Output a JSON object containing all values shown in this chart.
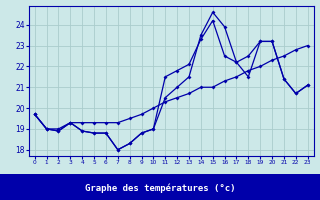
{
  "hours": [
    0,
    1,
    2,
    3,
    4,
    5,
    6,
    7,
    8,
    9,
    10,
    11,
    12,
    13,
    14,
    15,
    16,
    17,
    18,
    19,
    20,
    21,
    22,
    23
  ],
  "curve1": [
    19.7,
    19.0,
    18.9,
    19.3,
    18.9,
    18.8,
    18.8,
    18.0,
    18.3,
    18.8,
    19.0,
    20.5,
    21.0,
    21.5,
    23.5,
    24.6,
    23.9,
    22.2,
    21.5,
    23.2,
    23.2,
    21.4,
    20.7,
    21.1
  ],
  "curve2": [
    19.7,
    19.0,
    18.9,
    19.3,
    18.9,
    18.8,
    18.8,
    18.0,
    18.3,
    18.8,
    19.0,
    21.5,
    21.8,
    22.1,
    23.3,
    24.2,
    22.5,
    22.2,
    22.5,
    23.2,
    23.2,
    21.4,
    20.7,
    21.1
  ],
  "curve3": [
    19.7,
    19.0,
    19.0,
    19.3,
    19.3,
    19.3,
    19.3,
    19.3,
    19.5,
    19.7,
    20.0,
    20.3,
    20.5,
    20.7,
    21.0,
    21.0,
    21.3,
    21.5,
    21.8,
    22.0,
    22.3,
    22.5,
    22.8,
    23.0
  ],
  "bg_color": "#cce8e8",
  "grid_color": "#aacccc",
  "line_color": "#0000aa",
  "bar_color": "#0000aa",
  "xlabel": "Graphe des températures (°c)",
  "ylim": [
    17.7,
    24.9
  ],
  "xlim": [
    -0.5,
    23.5
  ],
  "yticks": [
    18,
    19,
    20,
    21,
    22,
    23,
    24
  ],
  "xticks": [
    0,
    1,
    2,
    3,
    4,
    5,
    6,
    7,
    8,
    9,
    10,
    11,
    12,
    13,
    14,
    15,
    16,
    17,
    18,
    19,
    20,
    21,
    22,
    23
  ]
}
